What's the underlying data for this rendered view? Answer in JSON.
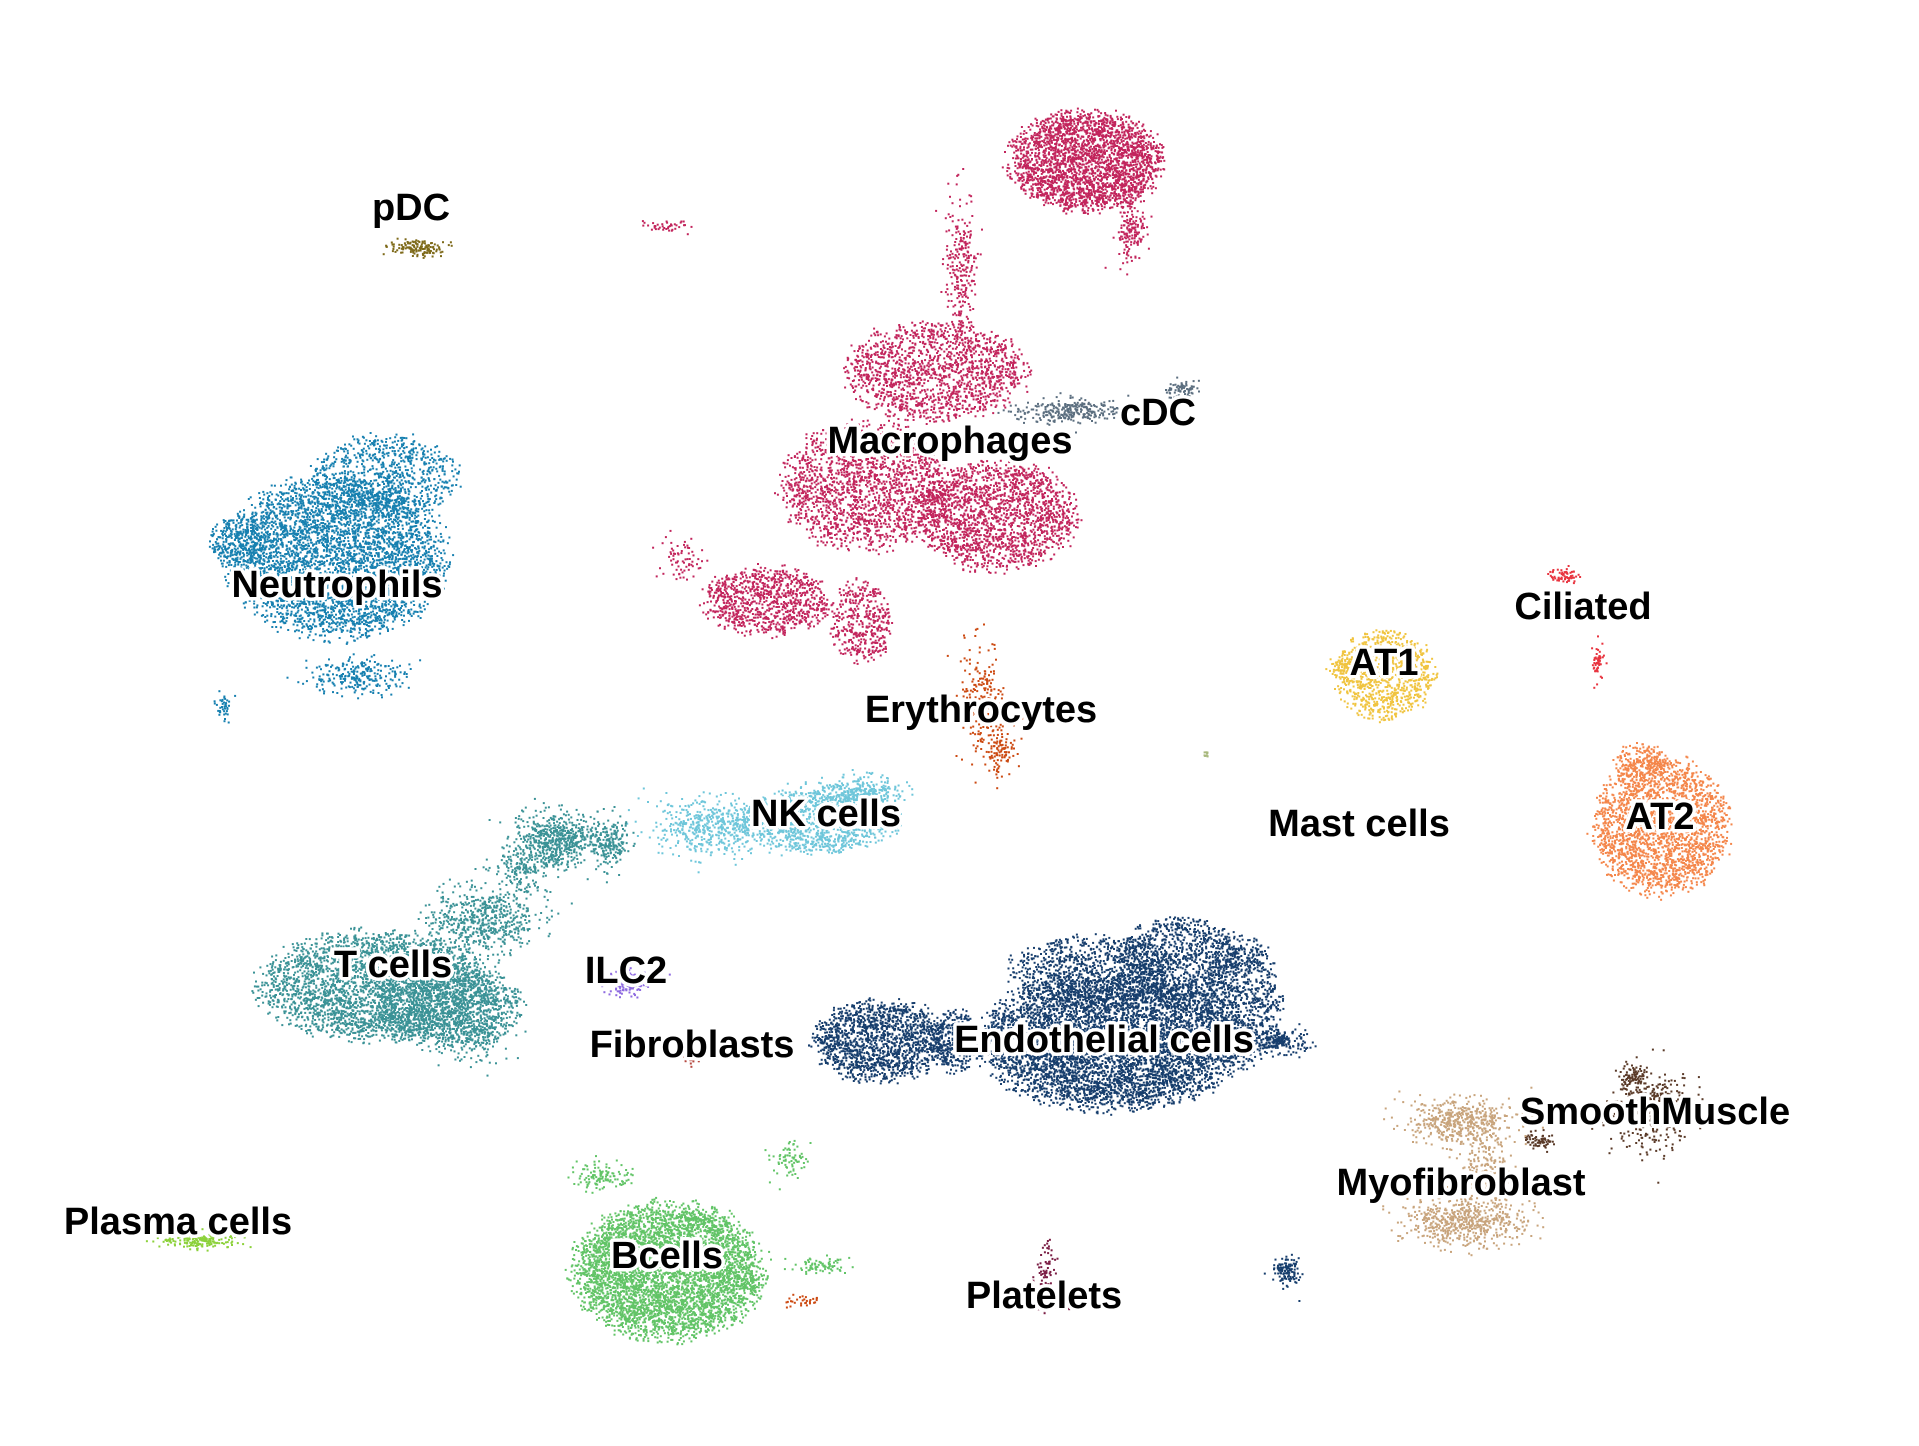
{
  "chart_data": {
    "type": "scatter",
    "title": "",
    "xlabel": "",
    "ylabel": "",
    "grid": false,
    "legend": "none",
    "clusters": [
      {
        "name": "Macrophages",
        "label": "Macrophages",
        "color": "#c2255c"
      },
      {
        "name": "cDC",
        "label": "cDC",
        "color": "#5b6e7f"
      },
      {
        "name": "Neutrophils",
        "label": "Neutrophils",
        "color": "#1780b0"
      },
      {
        "name": "pDC",
        "label": "pDC",
        "color": "#7e6a1a"
      },
      {
        "name": "Erythrocytes",
        "label": "Erythrocytes",
        "color": "#cc4a12"
      },
      {
        "name": "NK cells",
        "label": "NK cells",
        "color": "#6ec6da"
      },
      {
        "name": "T cells",
        "label": "T cells",
        "color": "#3a9296"
      },
      {
        "name": "ILC2",
        "label": "ILC2",
        "color": "#8e6ae0"
      },
      {
        "name": "Fibroblasts",
        "label": "Fibroblasts",
        "color": "#b5483f"
      },
      {
        "name": "Endothelial cells",
        "label": "Endothelial cells",
        "color": "#173e6d"
      },
      {
        "name": "Bcells",
        "label": "Bcells",
        "color": "#62c467"
      },
      {
        "name": "Plasma cells",
        "label": "Plasma cells",
        "color": "#8cd13a"
      },
      {
        "name": "Platelets",
        "label": "Platelets",
        "color": "#7a1d44"
      },
      {
        "name": "AT1",
        "label": "AT1",
        "color": "#f0c440"
      },
      {
        "name": "Ciliated",
        "label": "Ciliated",
        "color": "#e8343f"
      },
      {
        "name": "AT2",
        "label": "AT2",
        "color": "#f4864a"
      },
      {
        "name": "Mast cells",
        "label": "Mast cells",
        "color": "#a8b87c"
      },
      {
        "name": "SmoothMuscle",
        "label": "SmoothMuscle",
        "color": "#5a3a28"
      },
      {
        "name": "Myofibroblast",
        "label": "Myofibroblast",
        "color": "#c8a47c"
      }
    ]
  }
}
